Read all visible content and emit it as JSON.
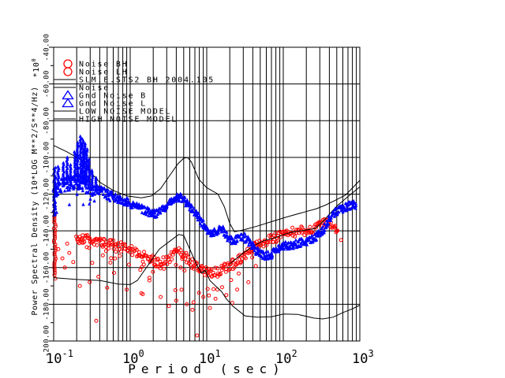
{
  "window": {
    "background": "#ffffff"
  },
  "chart_data": {
    "type": "scatter",
    "title": "",
    "xlabel": "Period (sec)",
    "ylabel": "Power Spectral Density (10*LOG M**2/S**4/Hz)",
    "scale_factor": {
      "prefix": "*10",
      "exponent": "0"
    },
    "x_axis": {
      "scale": "log",
      "min": 0.1,
      "max": 1000,
      "tick_labels": [
        {
          "mantissa": "10",
          "exponent": "-1"
        },
        {
          "mantissa": "10",
          "exponent": "0"
        },
        {
          "mantissa": "10",
          "exponent": "1"
        },
        {
          "mantissa": "10",
          "exponent": "2"
        },
        {
          "mantissa": "10",
          "exponent": "3"
        }
      ]
    },
    "y_axis": {
      "min": -200,
      "max": -40,
      "tick_step": 20,
      "tick_labels": [
        "-200.00",
        "-180.00",
        "-160.00",
        "-140.00",
        "-120.00",
        "-100.00",
        "-80.00",
        "-60.00",
        "-40.00"
      ]
    },
    "grid": {
      "on": true,
      "horizontal_step_db": 20,
      "vertical": "log-decades-with-minors"
    },
    "colors": {
      "station_noise": "#ff0000",
      "ground_noise": "#0000ff",
      "models": "#000000",
      "background": "#ffffff"
    },
    "legend": {
      "position": "top-left",
      "entries": [
        {
          "label": "Noise BH",
          "symbol": "circle",
          "color": "#ff0000"
        },
        {
          "label": "Noise LH",
          "symbol": "circle",
          "color": "#ff0000"
        },
        {
          "label": "SLM.E.STS2 BH 2004.105",
          "symbol": "line",
          "color": "#000000"
        },
        {
          "label": "Noise",
          "symbol": "line",
          "color": "#000000"
        },
        {
          "label": "Gnd Noise B",
          "symbol": "triangle",
          "color": "#0000ff"
        },
        {
          "label": "Gnd Noise L",
          "symbol": "triangle",
          "color": "#0000ff"
        },
        {
          "label": "LOW NOISE MODEL",
          "symbol": "line",
          "color": "#000000"
        },
        {
          "label": "HIGH NOISE MODEL",
          "symbol": "line",
          "color": "#000000"
        }
      ]
    },
    "series": [
      {
        "name": "Gnd Noise B",
        "render": "scatter-band",
        "marker": "triangle",
        "color": "#0000ff",
        "center": [
          [
            0.1,
            -118
          ],
          [
            0.12,
            -116
          ],
          [
            0.14,
            -115
          ],
          [
            0.17,
            -114
          ],
          [
            0.2,
            -113.5
          ],
          [
            0.23,
            -114
          ],
          [
            0.27,
            -115.5
          ],
          [
            0.32,
            -117
          ],
          [
            0.4,
            -118.5
          ],
          [
            0.5,
            -120
          ],
          [
            0.65,
            -122
          ],
          [
            0.8,
            -123.5
          ],
          [
            1.0,
            -125
          ],
          [
            1.3,
            -127.5
          ],
          [
            1.7,
            -129.5
          ],
          [
            2.1,
            -130.5
          ],
          [
            2.6,
            -128.5
          ],
          [
            3.1,
            -125.5
          ],
          [
            3.6,
            -123
          ],
          [
            4.1,
            -121.5
          ],
          [
            4.6,
            -122
          ],
          [
            5.2,
            -124
          ],
          [
            6.2,
            -127.5
          ],
          [
            7.3,
            -131
          ],
          [
            8.5,
            -135
          ],
          [
            10,
            -139.5
          ],
          [
            11.5,
            -142.5
          ],
          [
            13.5,
            -140
          ],
          [
            15,
            -138.5
          ],
          [
            17,
            -140.5
          ],
          [
            19.5,
            -144.5
          ],
          [
            23,
            -146
          ],
          [
            26,
            -143.5
          ],
          [
            30,
            -143
          ],
          [
            35,
            -145.5
          ],
          [
            42,
            -150
          ],
          [
            50,
            -152.5
          ],
          [
            60,
            -153.5
          ],
          [
            70,
            -153
          ],
          [
            81,
            -150
          ],
          [
            95,
            -148.5
          ],
          [
            115,
            -148
          ],
          [
            140,
            -147.5
          ],
          [
            170,
            -146.5
          ],
          [
            205,
            -145.5
          ],
          [
            245,
            -144.5
          ],
          [
            290,
            -142
          ],
          [
            340,
            -139
          ],
          [
            400,
            -133.5
          ],
          [
            470,
            -130.5
          ],
          [
            560,
            -128.2
          ],
          [
            670,
            -126.8
          ],
          [
            800,
            -125.8
          ],
          [
            880,
            -126.3
          ]
        ],
        "spikes": [
          [
            0.115,
            -105
          ],
          [
            0.135,
            -103
          ],
          [
            0.15,
            -100
          ],
          [
            0.165,
            -104
          ],
          [
            0.19,
            -97
          ],
          [
            0.205,
            -92
          ],
          [
            0.225,
            -88.5
          ],
          [
            0.24,
            -90
          ],
          [
            0.255,
            -92.5
          ],
          [
            0.27,
            -95.5
          ],
          [
            0.29,
            -101
          ],
          [
            0.32,
            -107
          ],
          [
            0.36,
            -111
          ]
        ],
        "edge_column": {
          "period": 0.1,
          "from": -106,
          "to": -132
        }
      },
      {
        "name": "Noise BH",
        "render": "scatter-band",
        "marker": "circle",
        "color": "#ff0000",
        "center": [
          [
            0.2,
            -145
          ],
          [
            0.24,
            -144
          ],
          [
            0.3,
            -144.5
          ],
          [
            0.4,
            -146
          ],
          [
            0.5,
            -147
          ],
          [
            0.65,
            -148
          ],
          [
            0.8,
            -149
          ],
          [
            1.0,
            -150.5
          ],
          [
            1.3,
            -152.5
          ],
          [
            1.7,
            -154.5
          ],
          [
            2.1,
            -156.5
          ],
          [
            2.6,
            -157.5
          ],
          [
            3.1,
            -155.5
          ],
          [
            3.7,
            -153
          ],
          [
            4.3,
            -151.5
          ],
          [
            5.0,
            -153
          ],
          [
            6.0,
            -156.5
          ],
          [
            7.0,
            -159
          ],
          [
            8.5,
            -161
          ],
          [
            10,
            -162
          ],
          [
            12,
            -163
          ],
          [
            15,
            -162
          ],
          [
            18,
            -160
          ],
          [
            22,
            -158
          ],
          [
            27,
            -155.5
          ],
          [
            33,
            -152.5
          ],
          [
            40,
            -149
          ],
          [
            50,
            -146.5
          ],
          [
            62,
            -145
          ],
          [
            81,
            -143.5
          ],
          [
            100,
            -142
          ],
          [
            125,
            -140.8
          ],
          [
            155,
            -140.2
          ],
          [
            190,
            -139.8
          ],
          [
            230,
            -139.3
          ],
          [
            270,
            -138.8
          ],
          [
            310,
            -136.5
          ],
          [
            350,
            -135.8
          ],
          [
            390,
            -135.2
          ],
          [
            420,
            -136
          ],
          [
            450,
            -137.5
          ],
          [
            480,
            -138.8
          ],
          [
            505,
            -139.8
          ]
        ],
        "outliers": [
          [
            0.105,
            -166
          ],
          [
            0.115,
            -150
          ],
          [
            0.13,
            -155
          ],
          [
            0.14,
            -160
          ],
          [
            0.15,
            -147
          ],
          [
            0.16,
            -152
          ],
          [
            0.18,
            -157
          ],
          [
            0.22,
            -170
          ],
          [
            0.36,
            -189
          ],
          [
            0.5,
            -171
          ],
          [
            0.9,
            -172
          ],
          [
            1.4,
            -174
          ],
          [
            2.5,
            -176
          ],
          [
            3.2,
            -181
          ],
          [
            4.0,
            -178
          ],
          [
            5.5,
            -180
          ],
          [
            6.5,
            -183
          ],
          [
            7.5,
            -197
          ],
          [
            9,
            -176
          ],
          [
            11,
            -182
          ],
          [
            13,
            -177
          ],
          [
            18,
            -175
          ],
          [
            25,
            -172
          ],
          [
            35,
            -168
          ],
          [
            570,
            -145
          ]
        ],
        "edge_column": {
          "period": 0.1,
          "from": -131,
          "to": -164
        }
      },
      {
        "name": "LOW NOISE MODEL",
        "render": "line",
        "color": "#000000",
        "points": [
          [
            0.1,
            -165.5
          ],
          [
            0.2,
            -166.5
          ],
          [
            0.4,
            -167
          ],
          [
            0.7,
            -169
          ],
          [
            1.0,
            -169.3
          ],
          [
            1.24,
            -167
          ],
          [
            2.4,
            -150
          ],
          [
            4.3,
            -142
          ],
          [
            5.0,
            -142.5
          ],
          [
            6.0,
            -150
          ],
          [
            7.5,
            -159
          ],
          [
            8.5,
            -163
          ],
          [
            9.5,
            -161.5
          ],
          [
            11,
            -167
          ],
          [
            13,
            -170
          ],
          [
            15.6,
            -173
          ],
          [
            18,
            -177
          ],
          [
            21.9,
            -181
          ],
          [
            31.6,
            -186.3
          ],
          [
            45,
            -187
          ],
          [
            70,
            -186.8
          ],
          [
            101,
            -185.3
          ],
          [
            154,
            -185.5
          ],
          [
            250,
            -187.5
          ],
          [
            328,
            -188
          ],
          [
            450,
            -187
          ],
          [
            600,
            -184.5
          ],
          [
            800,
            -182.5
          ],
          [
            1000,
            -180.5
          ]
        ]
      },
      {
        "name": "HIGH NOISE MODEL",
        "render": "line",
        "color": "#000000",
        "points": [
          [
            0.1,
            -93.5
          ],
          [
            0.15,
            -97
          ],
          [
            0.22,
            -101
          ],
          [
            0.3,
            -108
          ],
          [
            0.4,
            -113.5
          ],
          [
            0.6,
            -118
          ],
          [
            0.9,
            -121
          ],
          [
            1.4,
            -122
          ],
          [
            1.9,
            -121
          ],
          [
            2.5,
            -117
          ],
          [
            3.2,
            -110.5
          ],
          [
            4.2,
            -103.5
          ],
          [
            5.0,
            -100.5
          ],
          [
            5.6,
            -100
          ],
          [
            6.3,
            -102.5
          ],
          [
            7.9,
            -112
          ],
          [
            10,
            -116.5
          ],
          [
            14,
            -120
          ],
          [
            17,
            -127
          ],
          [
            20,
            -136
          ],
          [
            23,
            -140.5
          ],
          [
            30,
            -139.5
          ],
          [
            45,
            -137.5
          ],
          [
            70,
            -135
          ],
          [
            110,
            -132.5
          ],
          [
            180,
            -130
          ],
          [
            270,
            -128
          ],
          [
            355,
            -126
          ],
          [
            470,
            -123.5
          ],
          [
            650,
            -120.5
          ],
          [
            1000,
            -112.5
          ]
        ]
      },
      {
        "name": "SLM.E.STS2 BH 2004.105",
        "render": "line",
        "color": "#000000",
        "points": [
          [
            20,
            -158
          ],
          [
            30,
            -152
          ],
          [
            40,
            -148.5
          ],
          [
            55,
            -145.5
          ],
          [
            81,
            -143.5
          ],
          [
            110,
            -141.5
          ],
          [
            150,
            -140.3
          ],
          [
            200,
            -139.5
          ],
          [
            260,
            -138.8
          ],
          [
            320,
            -135.5
          ],
          [
            400,
            -131
          ],
          [
            500,
            -126.5
          ],
          [
            650,
            -122.5
          ],
          [
            820,
            -119
          ],
          [
            1000,
            -116
          ]
        ]
      }
    ]
  }
}
